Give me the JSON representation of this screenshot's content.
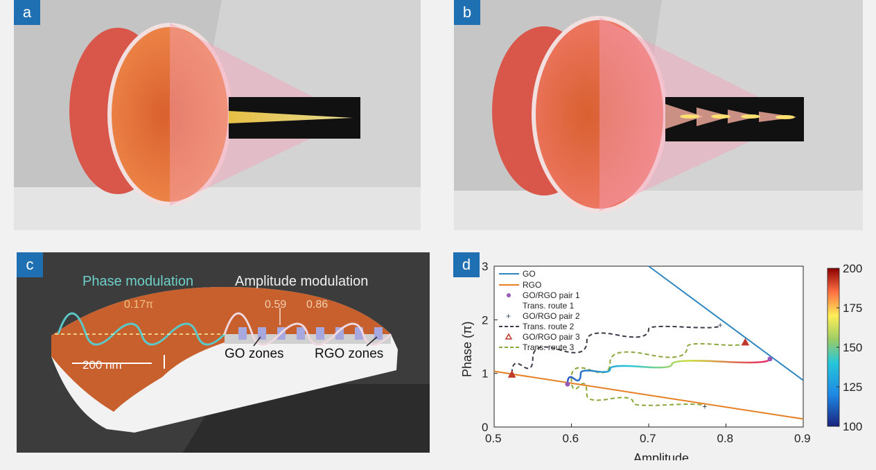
{
  "panels": {
    "a": {
      "label": "a"
    },
    "b": {
      "label": "b"
    },
    "c": {
      "label": "c",
      "phase_title": "Phase modulation",
      "amp_title": "Amplitude modulation",
      "phase_value": "0.17π",
      "amp_value_1": "0.59",
      "amp_value_2": "0.86",
      "scale_label": "200 nm",
      "go_label": "GO zones",
      "rgo_label": "RGO zones"
    },
    "d": {
      "label": "d"
    }
  },
  "colors": {
    "accent": "#1f6fb3",
    "go": "#2e86c1",
    "rgo": "#e67e22",
    "pair1": "#9b59b6",
    "pair2": "#34495e",
    "pair3": "#c0392b",
    "route2": "#3a3a4a",
    "route3": "#8aa83a"
  },
  "chart_data": {
    "type": "line",
    "xlabel": "Amplitude",
    "ylabel": "Phase (π)",
    "xlim": [
      0.5,
      0.9
    ],
    "ylim": [
      0,
      3
    ],
    "xticks": [
      "0.5",
      "0.6",
      "0.7",
      "0.8",
      "0.9"
    ],
    "yticks": [
      "0",
      "1",
      "2",
      "3"
    ],
    "legend": [
      "GO",
      "RGO",
      "GO/RGO pair 1",
      "Trans. route 1",
      "GO/RGO pair 2",
      "Trans. route 2",
      "GO/RGO pair 3",
      "Trans. route 3"
    ],
    "series": [
      {
        "name": "GO",
        "x": [
          0.7,
          0.9
        ],
        "y": [
          3.0,
          0.87
        ]
      },
      {
        "name": "RGO",
        "x": [
          0.5,
          0.9
        ],
        "y": [
          1.04,
          0.15
        ]
      },
      {
        "name": "GO/RGO pair 1",
        "x": [
          0.595,
          0.857
        ],
        "y": [
          0.8,
          1.27
        ]
      },
      {
        "name": "Trans. route 1",
        "x": [
          0.595,
          0.612,
          0.65,
          0.73,
          0.857
        ],
        "y": [
          0.8,
          1.0,
          1.08,
          1.17,
          1.27
        ]
      },
      {
        "name": "GO/RGO pair 2",
        "x": [
          0.773,
          0.793
        ],
        "y": [
          0.38,
          1.9
        ]
      },
      {
        "name": "Trans. route 2",
        "x": [
          0.523,
          0.55,
          0.62,
          0.7,
          0.793
        ],
        "y": [
          1.0,
          1.28,
          1.6,
          1.83,
          1.9
        ]
      },
      {
        "name": "GO/RGO pair 3",
        "x": [
          0.523,
          0.825
        ],
        "y": [
          0.98,
          1.58
        ]
      },
      {
        "name": "Trans. route 3",
        "x": [
          0.825,
          0.75,
          0.65,
          0.6,
          0.62,
          0.68,
          0.773
        ],
        "y": [
          1.58,
          1.5,
          1.2,
          0.92,
          0.6,
          0.45,
          0.38
        ]
      }
    ],
    "colorbar": {
      "min": 100,
      "max": 200,
      "ticks": [
        "100",
        "125",
        "150",
        "175",
        "200"
      ]
    }
  }
}
